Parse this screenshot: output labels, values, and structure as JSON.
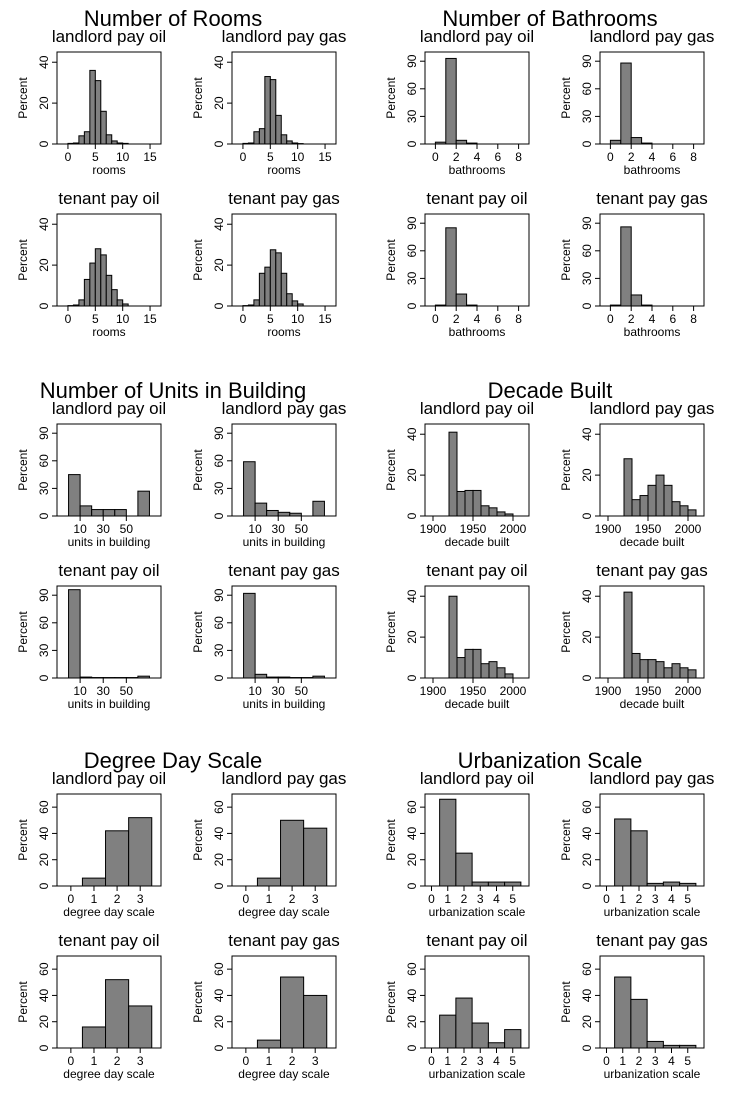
{
  "chart_data": [
    {
      "type": "bar",
      "title": "Number of Rooms",
      "xlabel": "rooms",
      "ylabel": "Percent",
      "xlim": [
        -2,
        17
      ],
      "ylim": [
        0,
        45
      ],
      "xticks": [
        0,
        5,
        10,
        15
      ],
      "yticks": [
        0,
        20,
        40
      ],
      "bin_width": 1,
      "panels": [
        {
          "title": "landlord pay oil",
          "bins": [
            0,
            1,
            2,
            3,
            4,
            5,
            6,
            7,
            8,
            9,
            10
          ],
          "values": [
            0.3,
            0.5,
            4,
            6,
            36,
            31,
            16,
            4.5,
            1.5,
            0.5,
            0.3
          ]
        },
        {
          "title": "landlord pay gas",
          "bins": [
            0,
            1,
            2,
            3,
            4,
            5,
            6,
            7,
            8,
            9,
            10
          ],
          "values": [
            0.3,
            0.5,
            6,
            7.5,
            33,
            31.5,
            14,
            4.5,
            1.5,
            0.5,
            0.2
          ]
        },
        {
          "title": "tenant pay oil",
          "bins": [
            0,
            1,
            2,
            3,
            4,
            5,
            6,
            7,
            8,
            9,
            10
          ],
          "values": [
            0.2,
            0.5,
            3,
            13,
            21,
            28,
            25,
            15,
            8,
            3,
            1
          ]
        },
        {
          "title": "tenant pay gas",
          "bins": [
            0,
            1,
            2,
            3,
            4,
            5,
            6,
            7,
            8,
            9,
            10
          ],
          "values": [
            0.2,
            0.5,
            3,
            16,
            19,
            27.5,
            26,
            16,
            6,
            2.5,
            1
          ]
        }
      ]
    },
    {
      "type": "bar",
      "title": "Number of Bathrooms",
      "xlabel": "bathrooms",
      "ylabel": "Percent",
      "xlim": [
        -1,
        9
      ],
      "ylim": [
        0,
        100
      ],
      "xticks": [
        0,
        2,
        4,
        6,
        8
      ],
      "yticks": [
        0,
        30,
        60,
        90
      ],
      "bin_width": 1,
      "panels": [
        {
          "title": "landlord pay oil",
          "bins": [
            0,
            1,
            2,
            3
          ],
          "values": [
            2,
            93,
            4,
            1
          ]
        },
        {
          "title": "landlord pay gas",
          "bins": [
            0,
            1,
            2,
            3
          ],
          "values": [
            4,
            88,
            7,
            1
          ]
        },
        {
          "title": "tenant pay oil",
          "bins": [
            0,
            1,
            2,
            3
          ],
          "values": [
            1,
            85,
            13,
            1
          ]
        },
        {
          "title": "tenant pay gas",
          "bins": [
            0,
            1,
            2,
            3
          ],
          "values": [
            1,
            86,
            12,
            1
          ]
        }
      ]
    },
    {
      "type": "bar",
      "title": "Number of Units in Building",
      "xlabel": "units in building",
      "ylabel": "Percent",
      "xlim": [
        -10,
        80
      ],
      "ylim": [
        0,
        100
      ],
      "xticks": [
        10,
        30,
        50
      ],
      "yticks": [
        0,
        30,
        60,
        90
      ],
      "bin_width": 10,
      "panels": [
        {
          "title": "landlord pay oil",
          "bins": [
            0,
            10,
            20,
            30,
            40,
            50,
            60
          ],
          "values": [
            45,
            11,
            7,
            7,
            7,
            0,
            27
          ]
        },
        {
          "title": "landlord pay gas",
          "bins": [
            0,
            10,
            20,
            30,
            40,
            50,
            60
          ],
          "values": [
            59,
            14,
            6,
            4,
            3,
            0,
            16
          ]
        },
        {
          "title": "tenant pay oil",
          "bins": [
            0,
            10,
            20,
            30,
            40,
            50,
            60
          ],
          "values": [
            96,
            1,
            0.5,
            0.5,
            0.5,
            0.5,
            2
          ]
        },
        {
          "title": "tenant pay gas",
          "bins": [
            0,
            10,
            20,
            30,
            40,
            50,
            60
          ],
          "values": [
            92,
            4,
            1,
            1,
            0.5,
            0.5,
            2
          ]
        }
      ]
    },
    {
      "type": "bar",
      "title": "Decade Built",
      "xlabel": "decade built",
      "ylabel": "Percent",
      "xlim": [
        1890,
        2020
      ],
      "ylim": [
        0,
        45
      ],
      "xticks": [
        1900,
        1950,
        2000
      ],
      "yticks": [
        0,
        20,
        40
      ],
      "bin_width": 10,
      "panels": [
        {
          "title": "landlord pay oil",
          "bins": [
            1920,
            1930,
            1940,
            1950,
            1960,
            1970,
            1980,
            1990
          ],
          "values": [
            41,
            12,
            12.5,
            12.5,
            5,
            4,
            2,
            1
          ]
        },
        {
          "title": "landlord pay gas",
          "bins": [
            1920,
            1930,
            1940,
            1950,
            1960,
            1970,
            1980,
            1990,
            2000
          ],
          "values": [
            28,
            8,
            10,
            15,
            20,
            15,
            7,
            5,
            3
          ]
        },
        {
          "title": "tenant pay oil",
          "bins": [
            1920,
            1930,
            1940,
            1950,
            1960,
            1970,
            1980,
            1990
          ],
          "values": [
            40,
            10,
            14,
            14,
            7,
            8,
            5,
            2
          ]
        },
        {
          "title": "tenant pay gas",
          "bins": [
            1920,
            1930,
            1940,
            1950,
            1960,
            1970,
            1980,
            1990,
            2000
          ],
          "values": [
            42,
            12,
            9,
            9,
            8,
            5,
            7,
            5,
            4
          ]
        }
      ]
    },
    {
      "type": "bar",
      "title": "Degree Day Scale",
      "xlabel": "degree day scale",
      "ylabel": "Percent",
      "xlim": [
        -0.6,
        3.9
      ],
      "ylim": [
        0,
        70
      ],
      "xticks": [
        0,
        1,
        2,
        3
      ],
      "yticks": [
        0,
        20,
        40,
        60
      ],
      "bin_width": 1,
      "panels": [
        {
          "title": "landlord pay oil",
          "bins": [
            0.5,
            1.5,
            2.5
          ],
          "values": [
            6,
            42,
            52
          ]
        },
        {
          "title": "landlord pay gas",
          "bins": [
            0.5,
            1.5,
            2.5
          ],
          "values": [
            6,
            50,
            44
          ]
        },
        {
          "title": "tenant pay oil",
          "bins": [
            0.5,
            1.5,
            2.5
          ],
          "values": [
            16,
            52,
            32
          ]
        },
        {
          "title": "tenant pay gas",
          "bins": [
            0.5,
            1.5,
            2.5
          ],
          "values": [
            6,
            54,
            40
          ]
        }
      ]
    },
    {
      "type": "bar",
      "title": "Urbanization Scale",
      "xlabel": "urbanization scale",
      "ylabel": "Percent",
      "xlim": [
        -0.4,
        6
      ],
      "ylim": [
        0,
        70
      ],
      "xticks": [
        0,
        1,
        2,
        3,
        4,
        5
      ],
      "yticks": [
        0,
        20,
        40,
        60
      ],
      "bin_width": 1,
      "panels": [
        {
          "title": "landlord pay oil",
          "bins": [
            0.5,
            1.5,
            2.5,
            3.5,
            4.5
          ],
          "values": [
            66,
            25,
            3,
            3,
            3
          ]
        },
        {
          "title": "landlord pay gas",
          "bins": [
            0.5,
            1.5,
            2.5,
            3.5,
            4.5
          ],
          "values": [
            51,
            42,
            2,
            3,
            2
          ]
        },
        {
          "title": "tenant pay oil",
          "bins": [
            0.5,
            1.5,
            2.5,
            3.5,
            4.5
          ],
          "values": [
            25,
            38,
            19,
            4,
            14
          ]
        },
        {
          "title": "tenant pay gas",
          "bins": [
            0.5,
            1.5,
            2.5,
            3.5,
            4.5
          ],
          "values": [
            54,
            37,
            5,
            2,
            2
          ]
        }
      ]
    }
  ]
}
